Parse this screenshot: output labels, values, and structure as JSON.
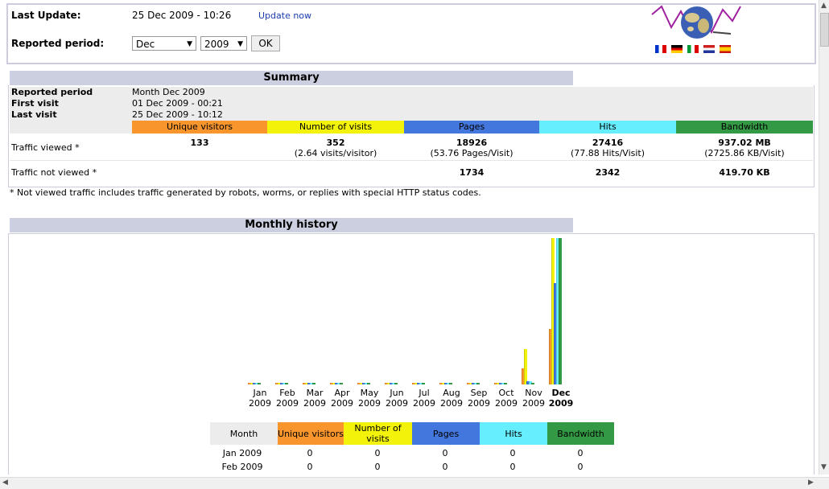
{
  "header": {
    "last_update_label": "Last Update:",
    "last_update_value": "25 Dec 2009 - 10:26",
    "update_now": "Update now",
    "reported_period_label": "Reported period:",
    "month_select": "Dec",
    "year_select": "2009",
    "ok_button": "OK"
  },
  "summary": {
    "title": "Summary",
    "rows": [
      {
        "k": "Reported period",
        "v": "Month Dec 2009"
      },
      {
        "k": "First visit",
        "v": "01 Dec 2009 - 00:21"
      },
      {
        "k": "Last visit",
        "v": "25 Dec 2009 - 10:12"
      }
    ],
    "columns": [
      "Unique visitors",
      "Number of visits",
      "Pages",
      "Hits",
      "Bandwidth"
    ],
    "column_colors": [
      "#f8952c",
      "#f2f20a",
      "#4477dd",
      "#66eeff",
      "#339944"
    ],
    "traffic_viewed_label": "Traffic viewed *",
    "traffic_viewed": [
      {
        "main": "133",
        "sub": ""
      },
      {
        "main": "352",
        "sub": "(2.64 visits/visitor)"
      },
      {
        "main": "18926",
        "sub": "(53.76 Pages/Visit)"
      },
      {
        "main": "27416",
        "sub": "(77.88 Hits/Visit)"
      },
      {
        "main": "937.02 MB",
        "sub": "(2725.86 KB/Visit)"
      }
    ],
    "traffic_not_viewed_label": "Traffic not viewed *",
    "traffic_not_viewed": [
      "",
      "",
      "1734",
      "2342",
      "419.70 KB"
    ],
    "note": "* Not viewed traffic includes traffic generated by robots, worms, or replies with special HTTP status codes."
  },
  "history": {
    "title": "Monthly history",
    "table_headers": [
      "Month",
      "Unique visitors",
      "Number of visits",
      "Pages",
      "Hits",
      "Bandwidth"
    ],
    "table_rows": [
      [
        "Jan 2009",
        "0",
        "0",
        "0",
        "0",
        "0"
      ],
      [
        "Feb 2009",
        "0",
        "0",
        "0",
        "0",
        "0"
      ]
    ]
  },
  "chart_data": {
    "type": "bar",
    "categories": [
      "Jan 2009",
      "Feb 2009",
      "Mar 2009",
      "Apr 2009",
      "May 2009",
      "Jun 2009",
      "Jul 2009",
      "Aug 2009",
      "Sep 2009",
      "Oct 2009",
      "Nov 2009",
      "Dec 2009"
    ],
    "month_labels": [
      "Jan",
      "Feb",
      "Mar",
      "Apr",
      "May",
      "Jun",
      "Jul",
      "Aug",
      "Sep",
      "Oct",
      "Nov",
      "Dec"
    ],
    "year_labels": [
      "2009",
      "2009",
      "2009",
      "2009",
      "2009",
      "2009",
      "2009",
      "2009",
      "2009",
      "2009",
      "2009",
      "2009"
    ],
    "highlight_index": 11,
    "series": [
      {
        "key": "visitors",
        "color": "#f8952c",
        "values": [
          0,
          0,
          0,
          0,
          0,
          0,
          0,
          0,
          0,
          0,
          0.11,
          0.38
        ]
      },
      {
        "key": "visits",
        "color": "#f2f20a",
        "values": [
          0,
          0,
          0,
          0,
          0,
          0,
          0,
          0,
          0,
          0,
          0.24,
          1.0
        ]
      },
      {
        "key": "pages",
        "color": "#4477dd",
        "values": [
          0,
          0,
          0,
          0,
          0,
          0,
          0,
          0,
          0,
          0,
          0.02,
          0.69
        ]
      },
      {
        "key": "hits",
        "color": "#66eeff",
        "values": [
          0,
          0,
          0,
          0,
          0,
          0,
          0,
          0,
          0,
          0,
          0.02,
          1.0
        ]
      },
      {
        "key": "bandwidth",
        "color": "#339944",
        "values": [
          0,
          0,
          0,
          0,
          0,
          0,
          0,
          0,
          0,
          0,
          0.01,
          1.0
        ]
      }
    ]
  },
  "flags": [
    "fr",
    "de",
    "it",
    "nl",
    "es"
  ]
}
